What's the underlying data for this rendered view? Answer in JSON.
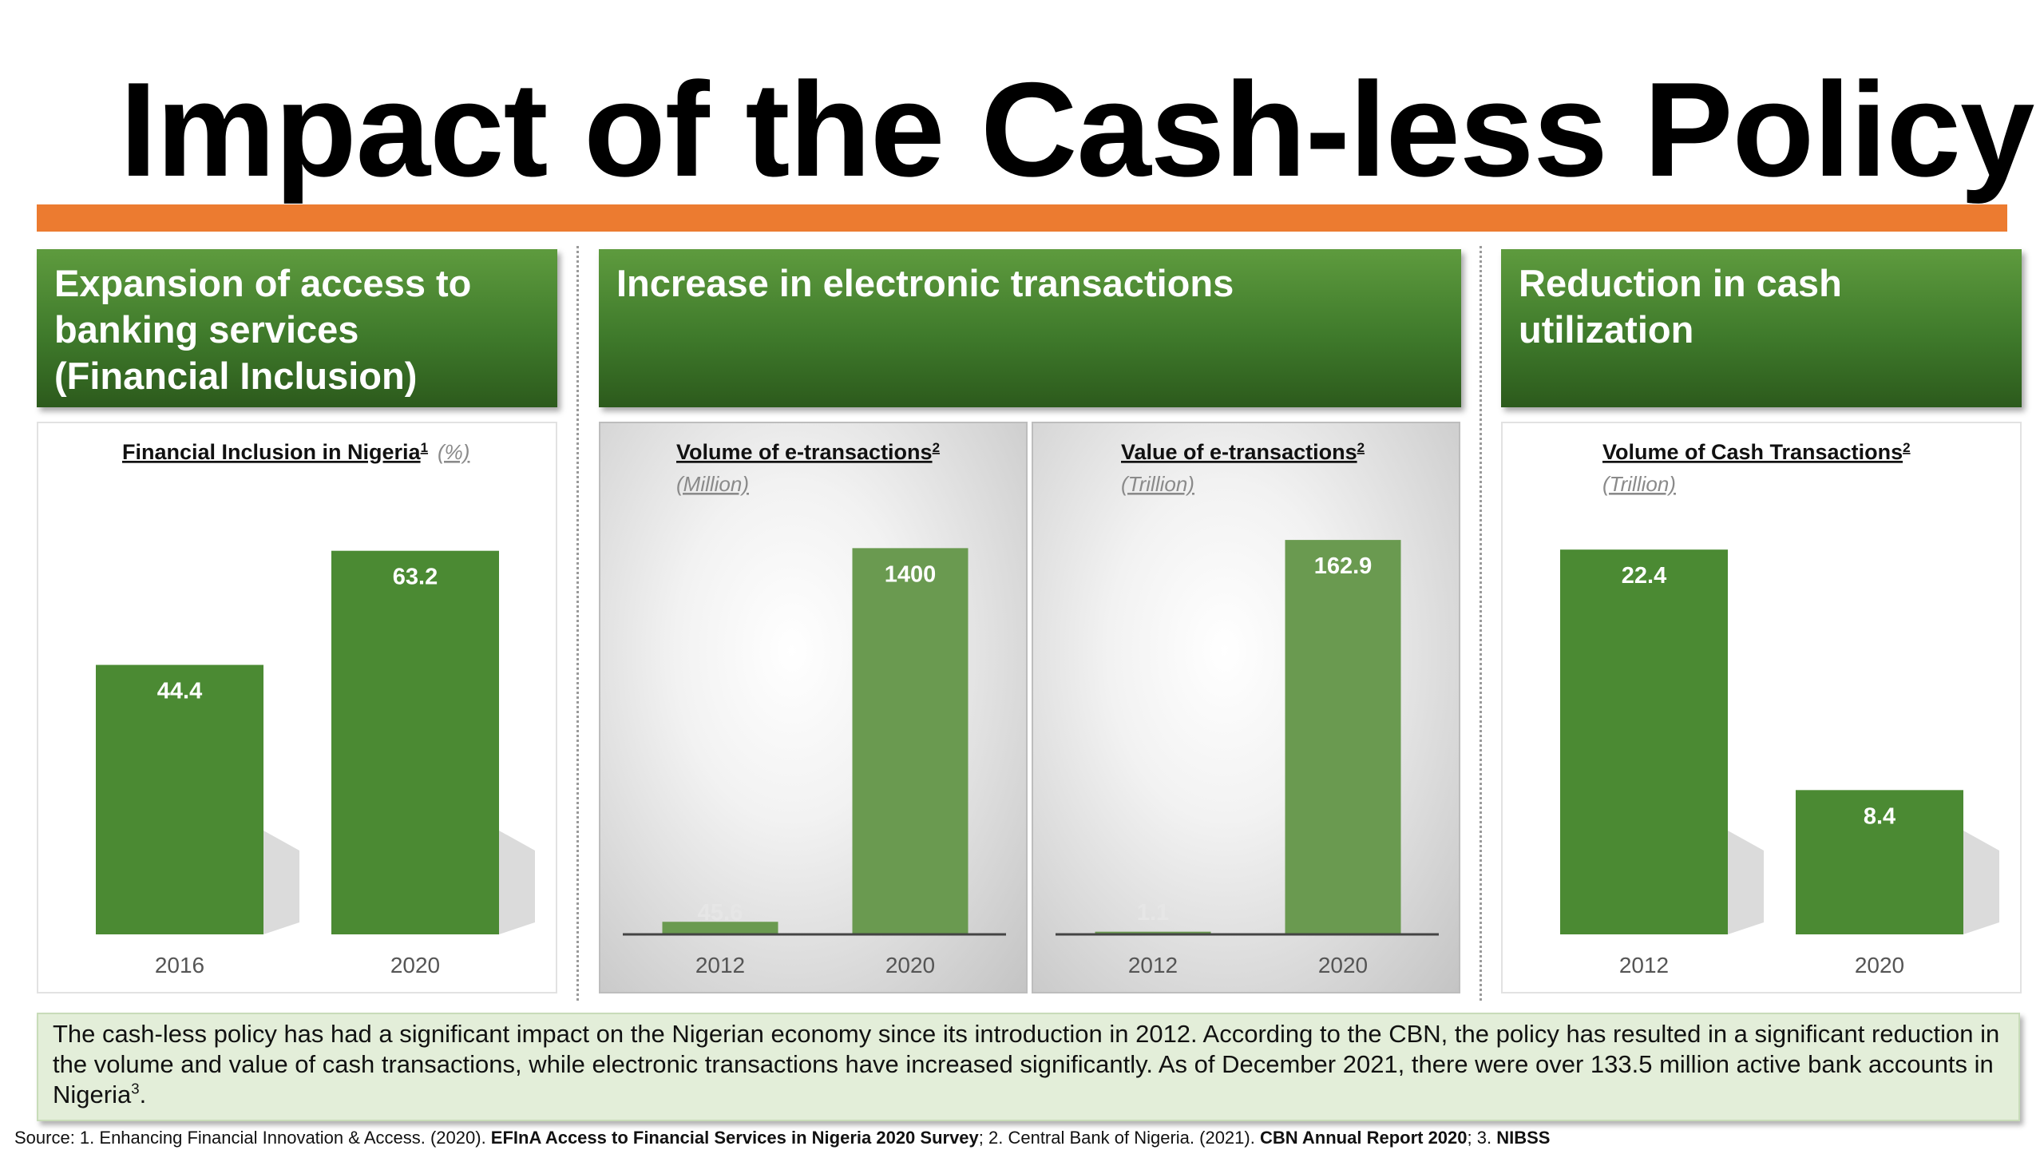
{
  "slide": {
    "title": "Impact of the Cash-less Policy",
    "accent_color": "#ec7b30",
    "bar_color": "#4b8a33",
    "bar_color_light": "#6a9a50"
  },
  "sections": [
    {
      "header": "Expansion of access to banking services (Financial Inclusion)"
    },
    {
      "header": "Increase in electronic transactions"
    },
    {
      "header": "Reduction in cash utilization"
    }
  ],
  "chart_data": [
    {
      "type": "bar",
      "title": "Financial Inclusion in Nigeria",
      "title_sup": "1",
      "unit": "(%)",
      "categories": [
        "2016",
        "2020"
      ],
      "values": [
        44.4,
        63.2
      ],
      "data_labels": [
        "44.4",
        "63.2"
      ],
      "ylim": [
        0,
        75
      ]
    },
    {
      "type": "bar",
      "title": "Volume of e-transactions",
      "title_sup": "2",
      "unit": "(Million)",
      "categories": [
        "2012",
        "2020"
      ],
      "values": [
        45.6,
        1400
      ],
      "data_labels": [
        "45.6",
        "1400"
      ],
      "ylim": [
        0,
        1650
      ]
    },
    {
      "type": "bar",
      "title": "Value of e-transactions",
      "title_sup": "2",
      "unit": "(Trillion)",
      "categories": [
        "2012",
        "2020"
      ],
      "values": [
        1.1,
        162.9
      ],
      "data_labels": [
        "1.1",
        "162.9"
      ],
      "ylim": [
        0,
        188
      ]
    },
    {
      "type": "bar",
      "title": "Volume of Cash Transactions",
      "title_sup": "2",
      "unit": "(Trillion)",
      "categories": [
        "2012",
        "2020"
      ],
      "values": [
        22.4,
        8.4
      ],
      "data_labels": [
        "22.4",
        "8.4"
      ],
      "ylim": [
        0,
        26.5
      ]
    }
  ],
  "summary": {
    "text": "The cash-less policy has had a significant impact on the Nigerian economy since its introduction in 2012. According to the CBN, the policy has resulted in a significant reduction in the volume and value of cash transactions, while electronic transactions have increased significantly. As of December 2021, there were over 133.5 million active bank accounts in Nigeria",
    "sup": "3",
    "end": "."
  },
  "source": {
    "prefix": "Source: 1. Enhancing Financial Innovation & Access. (2020). ",
    "ref1": "EFInA Access to Financial Services in Nigeria 2020 Survey",
    "mid1": "; 2. Central Bank of Nigeria. (2021). ",
    "ref2": "CBN Annual Report 2020",
    "mid2": "; 3. ",
    "ref3": "NIBSS"
  }
}
